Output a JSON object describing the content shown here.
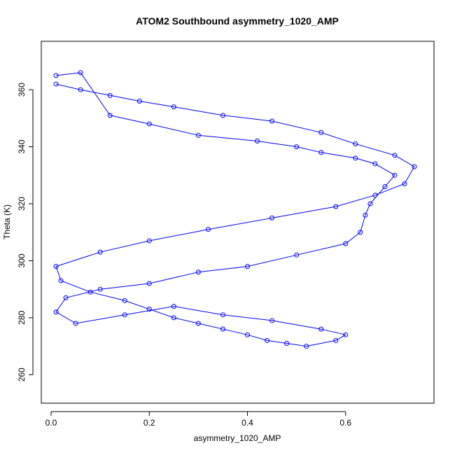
{
  "chart_data": {
    "type": "scatter",
    "title": "ATOM2 Southbound asymmetry_1020_AMP",
    "xlabel": "asymmetry_1020_AMP",
    "ylabel": "Theta (K)",
    "xlim": [
      -0.02,
      0.78
    ],
    "ylim": [
      250,
      377
    ],
    "x_ticks": [
      0.0,
      0.2,
      0.4,
      0.6
    ],
    "x_tick_labels": [
      "0.0",
      "0.2",
      "0.4",
      "0.6"
    ],
    "y_ticks": [
      260,
      280,
      300,
      320,
      340,
      360
    ],
    "y_tick_labels": [
      "260",
      "280",
      "300",
      "320",
      "340",
      "360"
    ],
    "grid": false,
    "legend": "none",
    "style": "points-and-lines",
    "marker": "open-circle",
    "series_color": "#0000ff",
    "series": [
      {
        "x": [
          0.01,
          0.06,
          0.12,
          0.2,
          0.3,
          0.42,
          0.5,
          0.55,
          0.62,
          0.66,
          0.7,
          0.68,
          0.65,
          0.64,
          0.63,
          0.6,
          0.5,
          0.4,
          0.3,
          0.2,
          0.1,
          0.03,
          0.01,
          0.05,
          0.15,
          0.25,
          0.35,
          0.45,
          0.55,
          0.6,
          0.58,
          0.52,
          0.48,
          0.44,
          0.4,
          0.35,
          0.3,
          0.25,
          0.2,
          0.15,
          0.08,
          0.02,
          0.01,
          0.1,
          0.2,
          0.32,
          0.45,
          0.58,
          0.66,
          0.72,
          0.74,
          0.7,
          0.62,
          0.55,
          0.45,
          0.35,
          0.25,
          0.18,
          0.12,
          0.06,
          0.01
        ],
        "y": [
          365,
          366,
          351,
          348,
          344,
          342,
          340,
          338,
          336,
          334,
          330,
          326,
          320,
          316,
          310,
          306,
          302,
          298,
          296,
          292,
          290,
          287,
          282,
          278,
          281,
          284,
          281,
          279,
          276,
          274,
          272,
          270,
          271,
          272,
          274,
          276,
          278,
          280,
          283,
          286,
          289,
          293,
          298,
          303,
          307,
          311,
          315,
          319,
          323,
          327,
          333,
          337,
          341,
          345,
          349,
          351,
          354,
          356,
          358,
          360,
          362
        ]
      }
    ]
  }
}
